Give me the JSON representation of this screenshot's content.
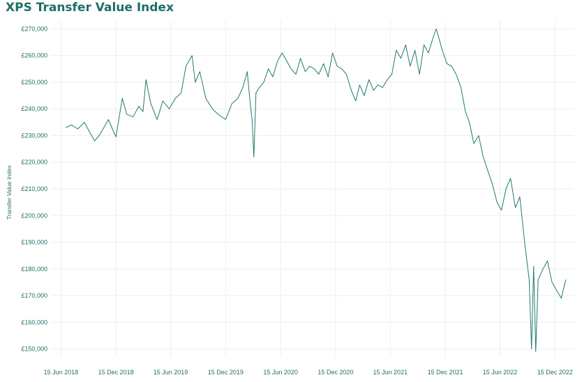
{
  "chart_data": {
    "type": "line",
    "title": "XPS Transfer Value Index",
    "xlabel": "",
    "ylabel": "Transfer Value Index",
    "x_ticks": [
      "15 Jun 2018",
      "15 Dec 2018",
      "15 Jun 2019",
      "15 Dec 2019",
      "15 Jun 2020",
      "15 Dec 2020",
      "15 Jun 2021",
      "15 Dec 2021",
      "15 Jun 2022",
      "15 Dec 2022"
    ],
    "y_ticks": [
      "£150,000",
      "£160,000",
      "£170,000",
      "£180,000",
      "£190,000",
      "£200,000",
      "£210,000",
      "£220,000",
      "£230,000",
      "£240,000",
      "£250,000",
      "£260,000",
      "£270,000"
    ],
    "xlim": [
      "2018-05-15",
      "2023-02-15"
    ],
    "ylim": [
      147000,
      273000
    ],
    "grid": true,
    "legend": "none",
    "color": "#1f7a6e",
    "series": [
      {
        "x": [
          "2018-07-01",
          "2018-07-20",
          "2018-08-10",
          "2018-09-01",
          "2018-09-20",
          "2018-10-05",
          "2018-10-20",
          "2018-11-05",
          "2018-11-20",
          "2018-12-05",
          "2018-12-15",
          "2019-01-05",
          "2019-01-20",
          "2019-02-10",
          "2019-03-01",
          "2019-03-15",
          "2019-03-25",
          "2019-04-10",
          "2019-05-01",
          "2019-05-20",
          "2019-06-10",
          "2019-07-01",
          "2019-07-20",
          "2019-08-05",
          "2019-08-15",
          "2019-08-25",
          "2019-09-05",
          "2019-09-20",
          "2019-10-10",
          "2019-11-01",
          "2019-11-20",
          "2019-12-15",
          "2020-01-05",
          "2020-01-25",
          "2020-02-10",
          "2020-02-25",
          "2020-03-05",
          "2020-03-12",
          "2020-03-18",
          "2020-03-25",
          "2020-04-05",
          "2020-04-20",
          "2020-05-05",
          "2020-05-20",
          "2020-06-05",
          "2020-06-20",
          "2020-07-05",
          "2020-07-20",
          "2020-08-05",
          "2020-08-20",
          "2020-09-05",
          "2020-09-20",
          "2020-10-05",
          "2020-10-20",
          "2020-11-05",
          "2020-11-20",
          "2020-12-05",
          "2020-12-20",
          "2021-01-05",
          "2021-01-20",
          "2021-02-05",
          "2021-02-20",
          "2021-03-05",
          "2021-03-20",
          "2021-04-05",
          "2021-04-20",
          "2021-05-05",
          "2021-05-20",
          "2021-06-05",
          "2021-06-20",
          "2021-07-05",
          "2021-07-20",
          "2021-08-05",
          "2021-08-20",
          "2021-09-05",
          "2021-09-20",
          "2021-10-05",
          "2021-10-20",
          "2021-11-05",
          "2021-11-15",
          "2021-11-25",
          "2021-12-05",
          "2021-12-20",
          "2022-01-05",
          "2022-01-20",
          "2022-02-05",
          "2022-02-20",
          "2022-03-05",
          "2022-03-20",
          "2022-04-05",
          "2022-04-20",
          "2022-05-05",
          "2022-05-20",
          "2022-06-05",
          "2022-06-20",
          "2022-07-05",
          "2022-07-20",
          "2022-08-05",
          "2022-08-20",
          "2022-09-05",
          "2022-09-20",
          "2022-09-28",
          "2022-10-05",
          "2022-10-12",
          "2022-10-20",
          "2022-11-05",
          "2022-11-20",
          "2022-12-05",
          "2022-12-20",
          "2023-01-05",
          "2023-01-20"
        ],
        "y": [
          233000,
          234000,
          232500,
          235000,
          231000,
          228000,
          230000,
          233000,
          236000,
          232000,
          229500,
          244000,
          238000,
          237000,
          241000,
          239000,
          251000,
          242000,
          236000,
          243000,
          240000,
          244000,
          246000,
          256000,
          258000,
          260000,
          250000,
          254000,
          244000,
          240000,
          238000,
          236000,
          242000,
          244000,
          248000,
          254000,
          243000,
          236000,
          222000,
          246000,
          248000,
          250000,
          255000,
          252000,
          258000,
          261000,
          258000,
          255000,
          253000,
          259000,
          254000,
          256000,
          255000,
          253000,
          257000,
          252000,
          261000,
          256000,
          255000,
          253000,
          247000,
          243000,
          249000,
          245000,
          251000,
          247000,
          249000,
          248000,
          251000,
          253000,
          262000,
          259000,
          264000,
          256000,
          262000,
          253000,
          264000,
          261000,
          267000,
          270000,
          266000,
          262000,
          257000,
          256000,
          253000,
          248000,
          239000,
          235000,
          227000,
          230000,
          222000,
          217000,
          212000,
          205000,
          202000,
          210000,
          214000,
          203000,
          207000,
          190000,
          176000,
          150000,
          181000,
          149000,
          176000,
          180000,
          183000,
          175000,
          172000,
          169000,
          176000
        ]
      }
    ]
  }
}
